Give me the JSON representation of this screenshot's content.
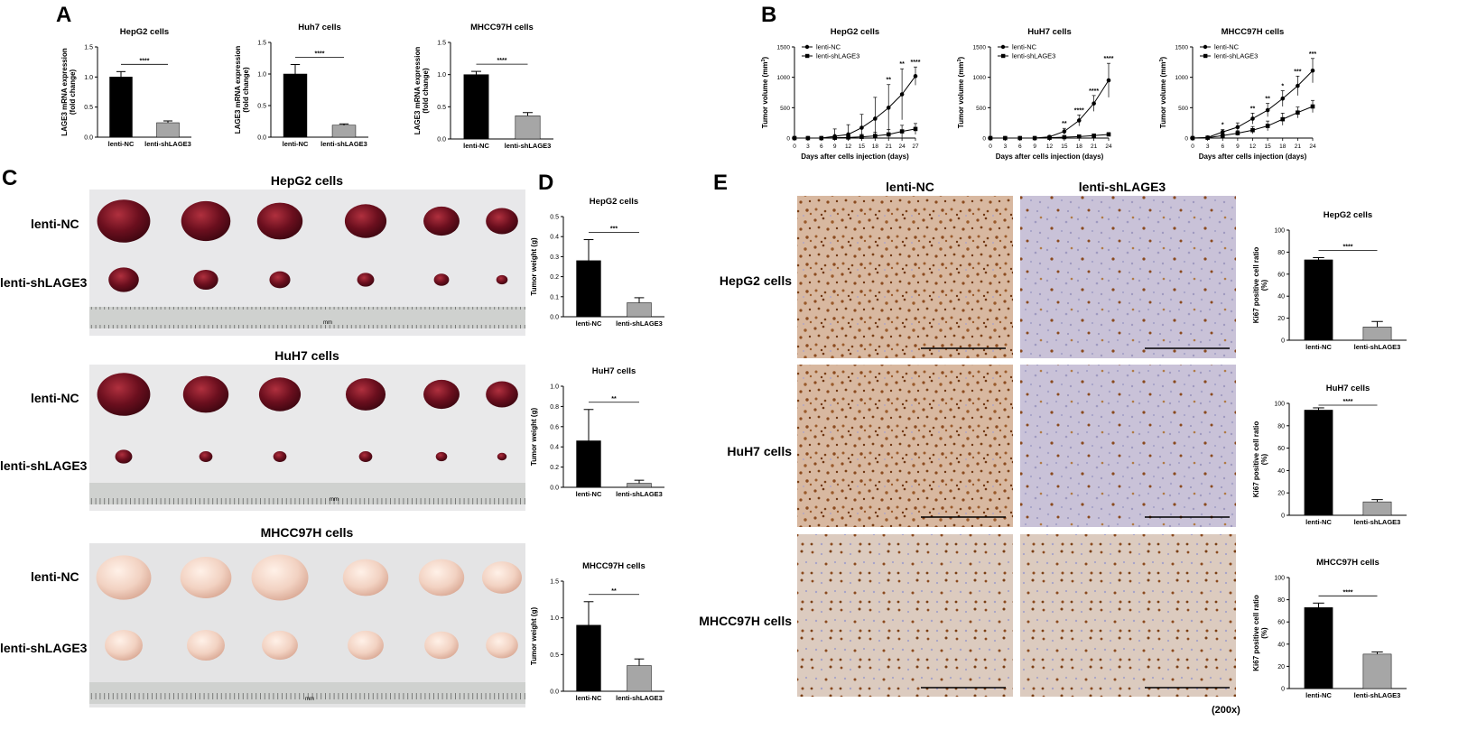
{
  "panel_letters": [
    "A",
    "B",
    "C",
    "D",
    "E"
  ],
  "chart_data": [
    {
      "panel": "A",
      "type": "bar",
      "title": "HepG2 cells",
      "ylabel": "LAGE3 mRNA expression (fold change)",
      "categories": [
        "lenti-NC",
        "lenti-shLAGE3"
      ],
      "values": [
        1.0,
        0.24
      ],
      "errors": [
        0.09,
        0.03
      ],
      "colors": [
        "#000000",
        "#a6a6a6"
      ],
      "ylim": [
        0,
        1.5
      ],
      "yticks": [
        "0.0",
        "0.5",
        "1.0",
        "1.5"
      ],
      "significance": "****"
    },
    {
      "panel": "A",
      "type": "bar",
      "title": "Huh7 cells",
      "ylabel": "LAGE3 mRNA expression (fold change)",
      "categories": [
        "lenti-NC",
        "lenti-shLAGE3"
      ],
      "values": [
        1.0,
        0.19
      ],
      "errors": [
        0.15,
        0.02
      ],
      "colors": [
        "#000000",
        "#a6a6a6"
      ],
      "ylim": [
        0,
        1.5
      ],
      "yticks": [
        "0.0",
        "0.5",
        "1.0",
        "1.5"
      ],
      "significance": "****"
    },
    {
      "panel": "A",
      "type": "bar",
      "title": "MHCC97H cells",
      "ylabel": "LAGE3 mRNA expression (fold change)",
      "categories": [
        "lenti-NC",
        "lenti-shLAGE3"
      ],
      "values": [
        1.0,
        0.36
      ],
      "errors": [
        0.05,
        0.05
      ],
      "colors": [
        "#000000",
        "#a6a6a6"
      ],
      "ylim": [
        0,
        1.5
      ],
      "yticks": [
        "0.0",
        "0.5",
        "1.0",
        "1.5"
      ],
      "significance": "****"
    },
    {
      "panel": "B",
      "type": "line",
      "title": "HepG2 cells",
      "ylabel": "Tumor volume (mm³)",
      "xlabel": "Days after cells injection (days)",
      "x": [
        0,
        3,
        6,
        9,
        12,
        15,
        18,
        21,
        24,
        27
      ],
      "xticks": [
        "0",
        "3",
        "6",
        "9",
        "12",
        "15",
        "18",
        "21",
        "24",
        "27"
      ],
      "ylim": [
        0,
        1500
      ],
      "yticks": [
        "0",
        "500",
        "1000",
        "1500"
      ],
      "series": [
        {
          "name": "lenti-NC",
          "marker": "circle",
          "values": [
            0,
            0,
            0,
            30,
            60,
            170,
            320,
            500,
            720,
            1020
          ],
          "errors": [
            0,
            0,
            20,
            120,
            160,
            220,
            350,
            380,
            420,
            150
          ]
        },
        {
          "name": "lenti-shLAGE3",
          "marker": "square",
          "values": [
            0,
            0,
            0,
            5,
            10,
            20,
            35,
            60,
            110,
            150
          ],
          "errors": [
            0,
            0,
            0,
            20,
            30,
            40,
            60,
            80,
            100,
            90
          ]
        }
      ],
      "significance": [
        {
          "x": 21,
          "text": "**"
        },
        {
          "x": 24,
          "text": "**"
        },
        {
          "x": 27,
          "text": "****"
        }
      ],
      "legend": "top-left"
    },
    {
      "panel": "B",
      "type": "line",
      "title": "HuH7 cells",
      "ylabel": "Tumor volume (mm³)",
      "xlabel": "Days after cells injection (days)",
      "x": [
        0,
        3,
        6,
        9,
        12,
        15,
        18,
        21,
        24
      ],
      "xticks": [
        "0",
        "3",
        "6",
        "9",
        "12",
        "15",
        "18",
        "21",
        "24"
      ],
      "ylim": [
        0,
        1500
      ],
      "yticks": [
        "0",
        "500",
        "1000",
        "1500"
      ],
      "series": [
        {
          "name": "lenti-NC",
          "marker": "circle",
          "values": [
            0,
            0,
            0,
            0,
            20,
            110,
            290,
            570,
            950
          ],
          "errors": [
            0,
            0,
            0,
            0,
            20,
            50,
            90,
            130,
            280
          ]
        },
        {
          "name": "lenti-shLAGE3",
          "marker": "square",
          "values": [
            0,
            0,
            0,
            0,
            5,
            15,
            25,
            40,
            60
          ],
          "errors": [
            0,
            0,
            0,
            0,
            5,
            10,
            15,
            20,
            30
          ]
        }
      ],
      "significance": [
        {
          "x": 15,
          "text": "**"
        },
        {
          "x": 18,
          "text": "****"
        },
        {
          "x": 21,
          "text": "****"
        },
        {
          "x": 24,
          "text": "****"
        }
      ],
      "legend": "top-left"
    },
    {
      "panel": "B",
      "type": "line",
      "title": "MHCC97H cells",
      "ylabel": "Tumor volume (mm³)",
      "xlabel": "Days after cells injection (days)",
      "x": [
        0,
        3,
        6,
        9,
        12,
        15,
        18,
        21,
        24
      ],
      "xticks": [
        "0",
        "3",
        "6",
        "9",
        "12",
        "15",
        "18",
        "21",
        "24"
      ],
      "ylim": [
        0,
        1500
      ],
      "yticks": [
        "0",
        "500",
        "1000",
        "1500"
      ],
      "series": [
        {
          "name": "lenti-NC",
          "marker": "circle",
          "values": [
            0,
            10,
            100,
            180,
            320,
            460,
            650,
            860,
            1110
          ],
          "errors": [
            0,
            10,
            40,
            70,
            90,
            110,
            130,
            160,
            200
          ]
        },
        {
          "name": "lenti-shLAGE3",
          "marker": "square",
          "values": [
            0,
            5,
            40,
            80,
            130,
            200,
            310,
            420,
            520
          ],
          "errors": [
            0,
            5,
            20,
            40,
            60,
            80,
            100,
            90,
            100
          ]
        }
      ],
      "significance": [
        {
          "x": 6,
          "text": "*"
        },
        {
          "x": 12,
          "text": "**"
        },
        {
          "x": 15,
          "text": "**"
        },
        {
          "x": 18,
          "text": "*"
        },
        {
          "x": 21,
          "text": "***"
        },
        {
          "x": 24,
          "text": "***"
        }
      ],
      "legend": "top-left"
    },
    {
      "panel": "D",
      "type": "bar",
      "title": "HepG2 cells",
      "ylabel": "Tumor weight (g)",
      "categories": [
        "lenti-NC",
        "lenti-shLAGE3"
      ],
      "values": [
        0.28,
        0.07
      ],
      "errors": [
        0.105,
        0.025
      ],
      "colors": [
        "#000000",
        "#a6a6a6"
      ],
      "ylim": [
        0,
        0.5
      ],
      "yticks": [
        "0.0",
        "0.1",
        "0.2",
        "0.3",
        "0.4",
        "0.5"
      ],
      "significance": "***"
    },
    {
      "panel": "D",
      "type": "bar",
      "title": "HuH7 cells",
      "ylabel": "Tumor weight (g)",
      "categories": [
        "lenti-NC",
        "lenti-shLAGE3"
      ],
      "values": [
        0.46,
        0.04
      ],
      "errors": [
        0.31,
        0.03
      ],
      "colors": [
        "#000000",
        "#a6a6a6"
      ],
      "ylim": [
        0,
        1.0
      ],
      "yticks": [
        "0.0",
        "0.2",
        "0.4",
        "0.6",
        "0.8",
        "1.0"
      ],
      "significance": "**"
    },
    {
      "panel": "D",
      "type": "bar",
      "title": "MHCC97H cells",
      "ylabel": "Tumor weight (g)",
      "categories": [
        "lenti-NC",
        "lenti-shLAGE3"
      ],
      "values": [
        0.9,
        0.35
      ],
      "errors": [
        0.32,
        0.09
      ],
      "colors": [
        "#000000",
        "#a6a6a6"
      ],
      "ylim": [
        0,
        1.5
      ],
      "yticks": [
        "0.0",
        "0.5",
        "1.0",
        "1.5"
      ],
      "significance": "**"
    },
    {
      "panel": "E",
      "type": "bar",
      "title": "HepG2 cells",
      "ylabel": "Ki67 positive cell ratio (%)",
      "categories": [
        "lenti-NC",
        "lenti-shLAGE3"
      ],
      "values": [
        73,
        12
      ],
      "errors": [
        2,
        5
      ],
      "colors": [
        "#000000",
        "#a6a6a6"
      ],
      "ylim": [
        0,
        100
      ],
      "yticks": [
        "0",
        "20",
        "40",
        "60",
        "80",
        "100"
      ],
      "significance": "****"
    },
    {
      "panel": "E",
      "type": "bar",
      "title": "HuH7 cells",
      "ylabel": "Ki67 positive cell ratio (%)",
      "categories": [
        "lenti-NC",
        "lenti-shLAGE3"
      ],
      "values": [
        94,
        12
      ],
      "errors": [
        2,
        2
      ],
      "colors": [
        "#000000",
        "#a6a6a6"
      ],
      "ylim": [
        0,
        100
      ],
      "yticks": [
        "0",
        "20",
        "40",
        "60",
        "80",
        "100"
      ],
      "significance": "****"
    },
    {
      "panel": "E",
      "type": "bar",
      "title": "MHCC97H cells",
      "ylabel": "Ki67 positive cell ratio (%)",
      "categories": [
        "lenti-NC",
        "lenti-shLAGE3"
      ],
      "values": [
        73,
        31
      ],
      "errors": [
        4,
        2
      ],
      "colors": [
        "#000000",
        "#a6a6a6"
      ],
      "ylim": [
        0,
        100
      ],
      "yticks": [
        "0",
        "20",
        "40",
        "60",
        "80",
        "100"
      ],
      "significance": "****"
    }
  ],
  "photos_c": {
    "groups": [
      {
        "title": "HepG2 cells",
        "tumor_color": "dark-red",
        "nc_count": 6,
        "sh_count": 6
      },
      {
        "title": "HuH7 cells",
        "tumor_color": "dark-red",
        "nc_count": 6,
        "sh_count": 6
      },
      {
        "title": "MHCC97H cells",
        "tumor_color": "pale-pink",
        "nc_count": 6,
        "sh_count": 6
      }
    ],
    "row_labels": [
      "lenti-NC",
      "lenti-shLAGE3"
    ],
    "ruler_unit": "mm",
    "colors": {
      "dark_tumor": "#6b0f1e",
      "pale_tumor": "#f2d2c2",
      "background": "#e9e9ea"
    }
  },
  "ihc_e": {
    "column_labels": [
      "lenti-NC",
      "lenti-shLAGE3"
    ],
    "row_labels": [
      "HepG2 cells",
      "HuH7 cells",
      "MHCC97H cells"
    ],
    "magnification": "(200x)",
    "colors": {
      "stain_brown": "#9a5a2a",
      "counterstain_blue": "#a7a3c8",
      "tissue_base": "#e7d9cf"
    }
  }
}
